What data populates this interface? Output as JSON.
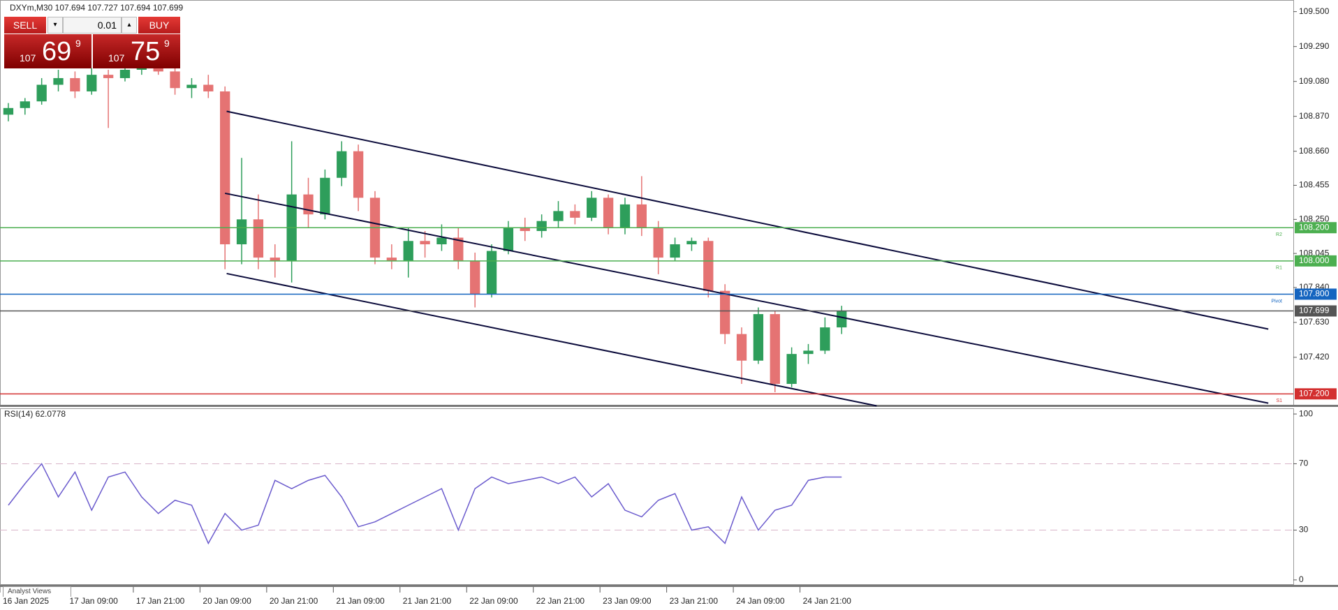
{
  "trade_panel": {
    "sell": "SELL",
    "buy": "BUY",
    "lot": "0.01",
    "sell_price": {
      "big_figure": "107",
      "pips": "69",
      "fraction": "9"
    },
    "buy_price": {
      "big_figure": "107",
      "pips": "75",
      "fraction": "9"
    }
  },
  "footer_tab": "Analyst Views",
  "chart_data": [
    {
      "type": "candlestick",
      "title": "DXYm,M30  107.694 107.727 107.694 107.699",
      "up_color": "#2e9e5b",
      "down_color": "#e57373",
      "open": [
        108.88,
        108.92,
        108.96,
        109.06,
        109.1,
        109.02,
        109.12,
        109.1,
        109.15,
        109.16,
        109.14,
        109.04,
        109.06,
        109.02,
        108.1,
        108.25,
        108.02,
        108.0,
        108.4,
        108.28,
        108.5,
        108.66,
        108.38,
        108.02,
        108.0,
        108.12,
        108.1,
        108.14,
        108.0,
        107.8,
        108.06,
        108.2,
        108.18,
        108.24,
        108.3,
        108.26,
        108.38,
        108.2,
        108.34,
        108.2,
        108.02,
        108.1,
        108.12,
        107.82,
        107.56,
        107.4,
        107.68,
        107.26,
        107.44,
        107.46,
        107.6
      ],
      "high": [
        108.95,
        108.98,
        109.1,
        109.15,
        109.14,
        109.16,
        109.15,
        109.18,
        109.18,
        109.18,
        109.16,
        109.1,
        109.12,
        109.05,
        108.62,
        108.4,
        108.1,
        108.72,
        108.5,
        108.55,
        108.72,
        108.7,
        108.42,
        108.1,
        108.2,
        108.18,
        108.22,
        108.2,
        108.05,
        108.1,
        108.24,
        108.26,
        108.28,
        108.36,
        108.34,
        108.42,
        108.4,
        108.38,
        108.51,
        108.24,
        108.14,
        108.14,
        108.14,
        107.86,
        107.6,
        107.72,
        107.7,
        107.48,
        107.5,
        107.66,
        107.73
      ],
      "low": [
        108.84,
        108.88,
        108.94,
        109.02,
        108.98,
        109.0,
        108.8,
        109.08,
        109.12,
        109.12,
        109.0,
        108.98,
        108.98,
        107.95,
        107.98,
        107.95,
        107.9,
        107.87,
        108.2,
        108.25,
        108.45,
        108.3,
        107.98,
        107.95,
        107.9,
        108.02,
        108.06,
        107.95,
        107.72,
        107.78,
        108.04,
        108.12,
        108.14,
        108.2,
        108.22,
        108.24,
        108.16,
        108.16,
        108.15,
        107.92,
        108.0,
        108.06,
        107.78,
        107.5,
        107.26,
        107.38,
        107.21,
        107.24,
        107.38,
        107.44,
        107.56
      ],
      "close": [
        108.92,
        108.96,
        109.06,
        109.1,
        109.02,
        109.12,
        109.1,
        109.15,
        109.16,
        109.14,
        109.04,
        109.06,
        109.02,
        108.1,
        108.25,
        108.02,
        108.0,
        108.4,
        108.28,
        108.5,
        108.66,
        108.38,
        108.02,
        108.0,
        108.12,
        108.1,
        108.14,
        108.0,
        107.8,
        108.06,
        108.2,
        108.18,
        108.24,
        108.3,
        108.26,
        108.38,
        108.2,
        108.34,
        108.2,
        108.02,
        108.1,
        108.12,
        107.82,
        107.56,
        107.4,
        107.68,
        107.26,
        107.44,
        107.46,
        107.6,
        107.699
      ],
      "xlim": [
        0,
        77.6
      ],
      "xticks": [
        {
          "value": 0,
          "label": "16 Jan 2025"
        },
        {
          "value": 4,
          "label": "17 Jan 09:00"
        },
        {
          "value": 8,
          "label": "17 Jan 21:00"
        },
        {
          "value": 12,
          "label": "20 Jan 09:00"
        },
        {
          "value": 16,
          "label": "20 Jan 21:00"
        },
        {
          "value": 20,
          "label": "21 Jan 09:00"
        },
        {
          "value": 24,
          "label": "21 Jan 21:00"
        },
        {
          "value": 28,
          "label": "22 Jan 09:00"
        },
        {
          "value": 32,
          "label": "22 Jan 21:00"
        },
        {
          "value": 36,
          "label": "23 Jan 09:00"
        },
        {
          "value": 40,
          "label": "23 Jan 21:00"
        },
        {
          "value": 44,
          "label": "24 Jan 09:00"
        },
        {
          "value": 48,
          "label": "24 Jan 21:00"
        }
      ],
      "ylim": [
        107.13,
        109.57
      ],
      "yticks": [
        {
          "value": 109.5,
          "label": "109.500"
        },
        {
          "value": 109.29,
          "label": "109.290"
        },
        {
          "value": 109.08,
          "label": "109.080"
        },
        {
          "value": 108.87,
          "label": "108.870"
        },
        {
          "value": 108.66,
          "label": "108.660"
        },
        {
          "value": 108.455,
          "label": "108.455"
        },
        {
          "value": 108.25,
          "label": "108.250"
        },
        {
          "value": 108.045,
          "label": "108.045"
        },
        {
          "value": 107.84,
          "label": "107.840"
        },
        {
          "value": 107.63,
          "label": "107.630"
        },
        {
          "value": 107.42,
          "label": "107.420"
        }
      ],
      "levels": [
        {
          "value": 108.2,
          "label": "108.200",
          "tag": "R2",
          "color": "#4caf50"
        },
        {
          "value": 108.0,
          "label": "108.000",
          "tag": "R1",
          "color": "#4caf50"
        },
        {
          "value": 107.8,
          "label": "107.800",
          "tag": "Pivot",
          "color": "#1565c0"
        },
        {
          "value": 107.699,
          "label": "107.699",
          "color": "#555555"
        },
        {
          "value": 107.2,
          "label": "107.200",
          "tag": "S1",
          "color": "#d32f2f"
        }
      ],
      "trendline_color": "#0a0a3a",
      "trendlines": [
        {
          "x": [
            13.6,
            76.1
          ],
          "y": [
            108.9,
            107.59
          ]
        },
        {
          "x": [
            13.5,
            76.1
          ],
          "y": [
            108.407,
            107.144
          ]
        },
        {
          "x": [
            13.6,
            52.6
          ],
          "y": [
            107.924,
            107.128
          ]
        }
      ]
    },
    {
      "type": "line",
      "title": "RSI(14) 62.0778",
      "color": "#6a5acd",
      "values": [
        45,
        58,
        70,
        50,
        65,
        42,
        62,
        65,
        50,
        40,
        48,
        45,
        22,
        40,
        30,
        33,
        60,
        55,
        60,
        63,
        50,
        32,
        35,
        40,
        45,
        50,
        55,
        30,
        55,
        62,
        58,
        60,
        62,
        58,
        62,
        50,
        58,
        42,
        38,
        48,
        52,
        30,
        32,
        22,
        50,
        30,
        42,
        45,
        60,
        62,
        62
      ],
      "ylim": [
        -3,
        103
      ],
      "yticks": [
        0,
        30,
        70,
        100
      ],
      "levels": [
        30,
        70
      ],
      "level_color": "#d8b4c8"
    }
  ]
}
